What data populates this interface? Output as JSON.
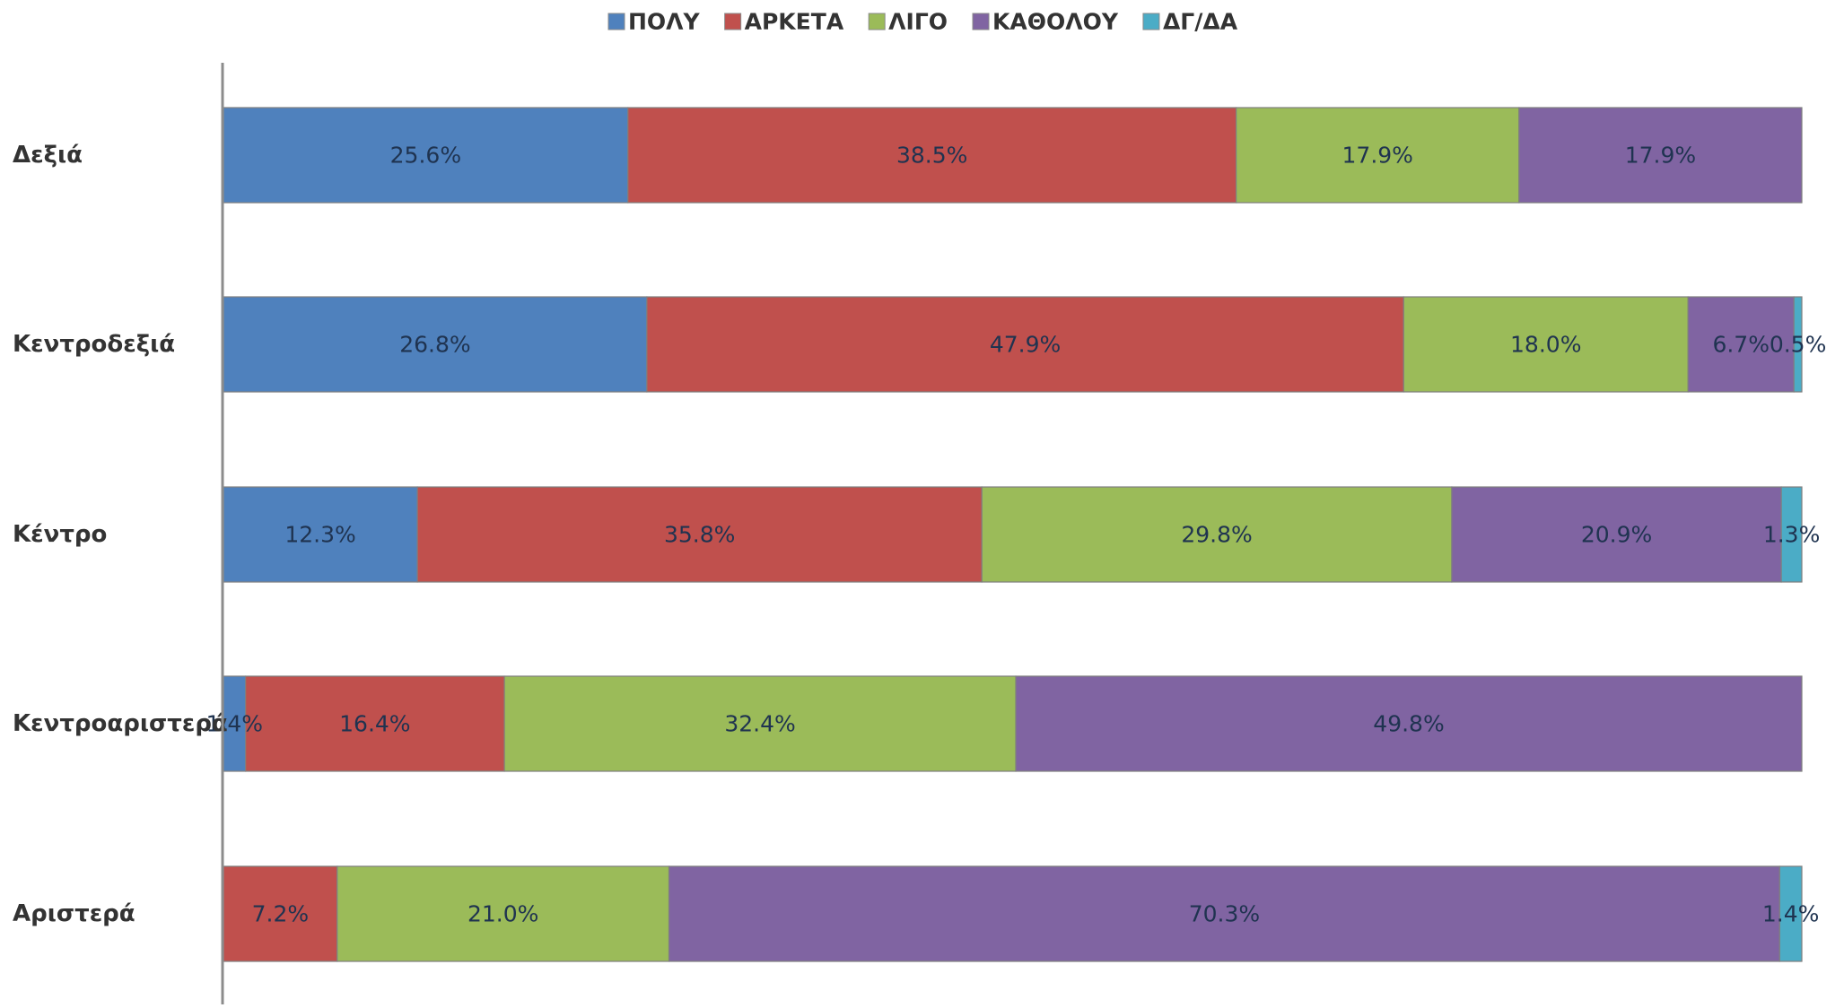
{
  "chart_data": {
    "type": "bar",
    "orientation": "horizontal",
    "stacked": true,
    "percent_stacked": true,
    "title": "",
    "xlabel": "",
    "ylabel": "",
    "xlim": [
      0,
      100
    ],
    "grid": false,
    "legend_position": "top",
    "categories": [
      "Δεξιά",
      "Κεντροδεξιά",
      "Κέντρο",
      "Κεντροαριστερά",
      "Αριστερά"
    ],
    "series": [
      {
        "name": "ΠΟΛΥ",
        "color": "#4f81bd",
        "values": [
          25.6,
          26.8,
          12.3,
          1.4,
          0.0
        ]
      },
      {
        "name": "ΑΡΚΕΤΑ",
        "color": "#c0504d",
        "values": [
          38.5,
          47.9,
          35.8,
          16.4,
          7.2
        ]
      },
      {
        "name": "ΛΙΓΟ",
        "color": "#9bbb59",
        "values": [
          17.9,
          18.0,
          29.8,
          32.4,
          21.0
        ]
      },
      {
        "name": "ΚΑΘΟΛΟΥ",
        "color": "#8064a2",
        "values": [
          17.9,
          6.7,
          20.9,
          49.8,
          70.3
        ]
      },
      {
        "name": "ΔΓ/ΔΑ",
        "color": "#4bacc6",
        "values": [
          0.0,
          0.5,
          1.3,
          0.0,
          1.4
        ]
      }
    ],
    "data_labels": [
      [
        "25.6%",
        "38.5%",
        "17.9%",
        "17.9%",
        ""
      ],
      [
        "26.8%",
        "47.9%",
        "18.0%",
        "6.7%",
        "0.5%"
      ],
      [
        "12.3%",
        "35.8%",
        "29.8%",
        "20.9%",
        "1.3%"
      ],
      [
        "1.4%",
        "16.4%",
        "32.4%",
        "49.8%",
        ""
      ],
      [
        "",
        "7.2%",
        "21.0%",
        "70.3%",
        "1.4%"
      ]
    ]
  }
}
